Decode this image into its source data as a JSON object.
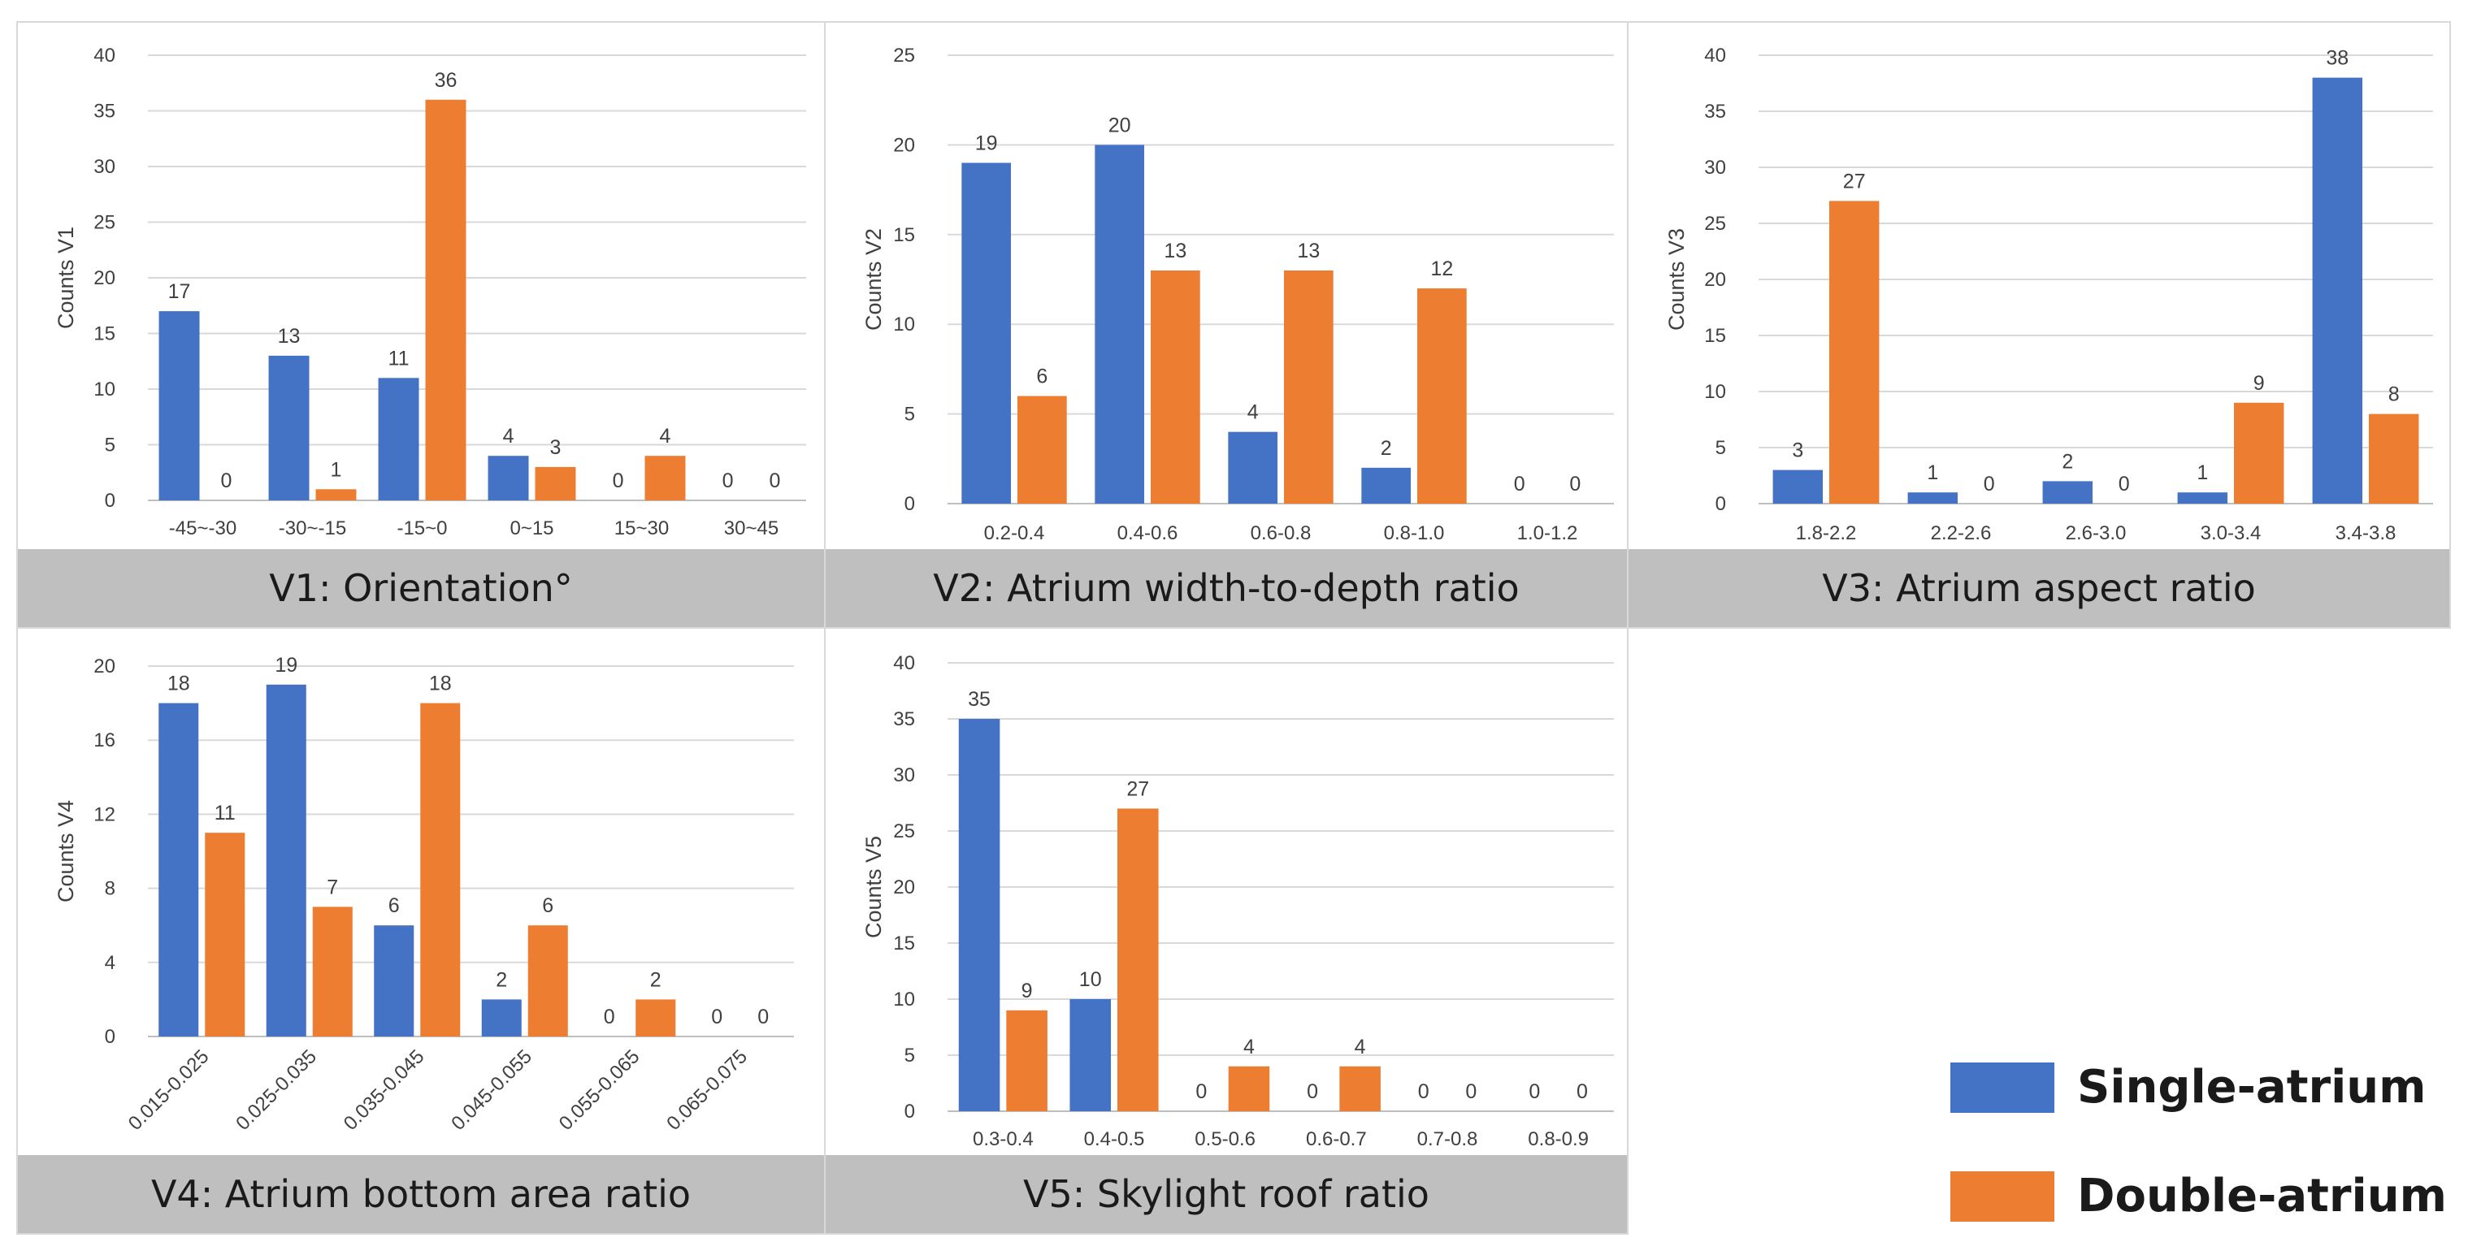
{
  "legend": {
    "single": {
      "label": "Single-atrium",
      "color": "#4472c4"
    },
    "double": {
      "label": "Double-atrium",
      "color": "#ed7d31"
    }
  },
  "chart_data": [
    {
      "type": "bar",
      "title": "V1: Orientation°",
      "ylabel": "Counts V1",
      "categories": [
        "-45~-30",
        "-30~-15",
        "-15~0",
        "0~15",
        "15~30",
        "30~45"
      ],
      "series": [
        {
          "name": "Single-atrium",
          "values": [
            17,
            13,
            11,
            4,
            0,
            0
          ]
        },
        {
          "name": "Double-atrium",
          "values": [
            0,
            1,
            36,
            3,
            4,
            0
          ]
        }
      ],
      "ylim": [
        0,
        40
      ],
      "yticks": [
        "0",
        "5",
        "10",
        "15",
        "20",
        "25",
        "30",
        "35",
        "40"
      ],
      "grid": true
    },
    {
      "type": "bar",
      "title": "V2: Atrium width-to-depth ratio",
      "ylabel": "Counts V2",
      "categories": [
        "0.2-0.4",
        "0.4-0.6",
        "0.6-0.8",
        "0.8-1.0",
        "1.0-1.2"
      ],
      "series": [
        {
          "name": "Single-atrium",
          "values": [
            19,
            20,
            4,
            2,
            0
          ]
        },
        {
          "name": "Double-atrium",
          "values": [
            6,
            13,
            13,
            12,
            0
          ]
        }
      ],
      "ylim": [
        0,
        25
      ],
      "yticks": [
        "0",
        "5",
        "10",
        "15",
        "20",
        "25"
      ],
      "grid": true
    },
    {
      "type": "bar",
      "title": "V3: Atrium aspect ratio",
      "ylabel": "Counts V3",
      "categories": [
        "1.8-2.2",
        "2.2-2.6",
        "2.6-3.0",
        "3.0-3.4",
        "3.4-3.8"
      ],
      "series": [
        {
          "name": "Single-atrium",
          "values": [
            3,
            1,
            2,
            1,
            38
          ]
        },
        {
          "name": "Double-atrium",
          "values": [
            27,
            0,
            0,
            9,
            8
          ]
        }
      ],
      "ylim": [
        0,
        40
      ],
      "yticks": [
        "0",
        "5",
        "10",
        "15",
        "20",
        "25",
        "30",
        "35",
        "40"
      ],
      "grid": true
    },
    {
      "type": "bar",
      "title": "V4: Atrium bottom area ratio",
      "ylabel": "Counts V4",
      "categories": [
        "0.015-0.025",
        "0.025-0.035",
        "0.035-0.045",
        "0.045-0.055",
        "0.055-0.065",
        "0.065-0.075"
      ],
      "series": [
        {
          "name": "Single-atrium",
          "values": [
            18,
            19,
            6,
            2,
            0,
            0
          ]
        },
        {
          "name": "Double-atrium",
          "values": [
            11,
            7,
            18,
            6,
            2,
            0
          ]
        }
      ],
      "ylim": [
        0,
        20
      ],
      "yticks": [
        "0",
        "4",
        "8",
        "12",
        "16",
        "20"
      ],
      "grid": true,
      "rotated_x_labels": true
    },
    {
      "type": "bar",
      "title": "V5: Skylight roof ratio",
      "ylabel": "Counts V5",
      "categories": [
        "0.3-0.4",
        "0.4-0.5",
        "0.5-0.6",
        "0.6-0.7",
        "0.7-0.8",
        "0.8-0.9"
      ],
      "series": [
        {
          "name": "Single-atrium",
          "values": [
            35,
            10,
            0,
            0,
            0,
            0
          ]
        },
        {
          "name": "Double-atrium",
          "values": [
            9,
            27,
            4,
            4,
            0,
            0
          ]
        }
      ],
      "ylim": [
        0,
        40
      ],
      "yticks": [
        "0",
        "5",
        "10",
        "15",
        "20",
        "25",
        "30",
        "35",
        "40"
      ],
      "grid": true
    }
  ]
}
